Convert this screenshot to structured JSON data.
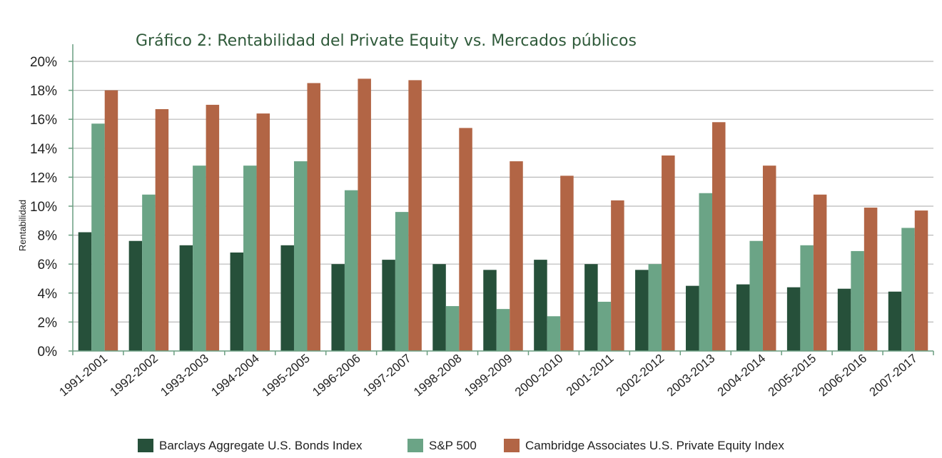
{
  "chart_data": {
    "type": "bar",
    "title": "Gráfico 2: Rentabilidad del Private Equity vs. Mercados públicos",
    "xlabel": "",
    "ylabel": "Rentabilidad",
    "ylim": [
      0,
      20
    ],
    "yticks": [
      "0%",
      "2%",
      "4%",
      "6%",
      "8%",
      "10%",
      "12%",
      "14%",
      "16%",
      "18%",
      "20%"
    ],
    "grid": true,
    "legend_position": "bottom",
    "categories": [
      "1991-2001",
      "1992-2002",
      "1993-2003",
      "1994-2004",
      "1995-2005",
      "1996-2006",
      "1997-2007",
      "1998-2008",
      "1999-2009",
      "2000-2010",
      "2001-2011",
      "2002-2012",
      "2003-2013",
      "2004-2014",
      "2005-2015",
      "2006-2016",
      "2007-2017"
    ],
    "series": [
      {
        "name": "Barclays Aggregate U.S. Bonds Index",
        "color": "#26503a",
        "values": [
          8.2,
          7.6,
          7.3,
          6.8,
          7.3,
          6.0,
          6.3,
          6.0,
          5.6,
          6.3,
          6.0,
          5.6,
          4.5,
          4.6,
          4.4,
          4.3,
          4.1
        ]
      },
      {
        "name": "S&P 500",
        "color": "#6ba486",
        "values": [
          15.7,
          10.8,
          12.8,
          12.8,
          13.1,
          11.1,
          9.6,
          3.1,
          2.9,
          2.4,
          3.4,
          6.0,
          10.9,
          7.6,
          7.3,
          6.9,
          8.5
        ]
      },
      {
        "name": "Cambridge Associates U.S. Private Equity Index",
        "color": "#b26545",
        "values": [
          18.0,
          16.7,
          17.0,
          16.4,
          18.5,
          18.8,
          18.7,
          15.4,
          13.1,
          12.1,
          10.4,
          13.5,
          15.8,
          12.8,
          10.8,
          9.9,
          9.7
        ]
      }
    ]
  }
}
